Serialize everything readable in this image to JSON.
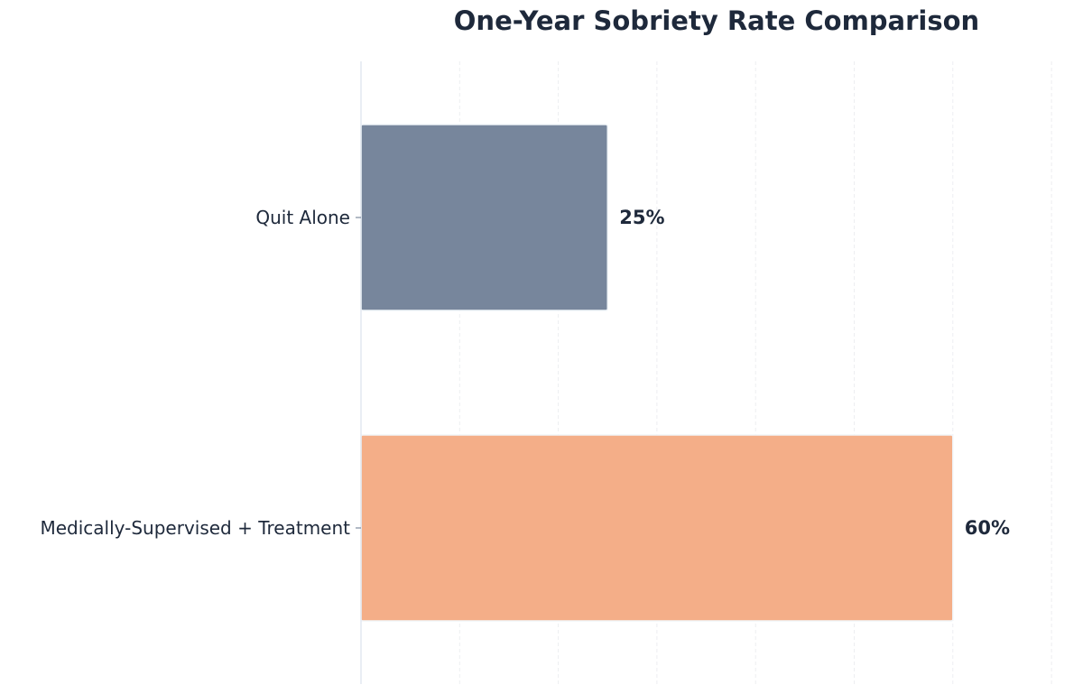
{
  "chart_data": {
    "type": "bar",
    "orientation": "horizontal",
    "title": "One-Year Sobriety Rate Comparison",
    "xlabel": "",
    "ylabel": "",
    "xlim": [
      0,
      70
    ],
    "grid": "vertical",
    "categories": [
      "Quit Alone",
      "Medically-Supervised + Treatment"
    ],
    "values": [
      25,
      60
    ],
    "value_labels": [
      "25%",
      "60%"
    ],
    "colors": [
      "#77869c",
      "#f4ae88"
    ]
  }
}
